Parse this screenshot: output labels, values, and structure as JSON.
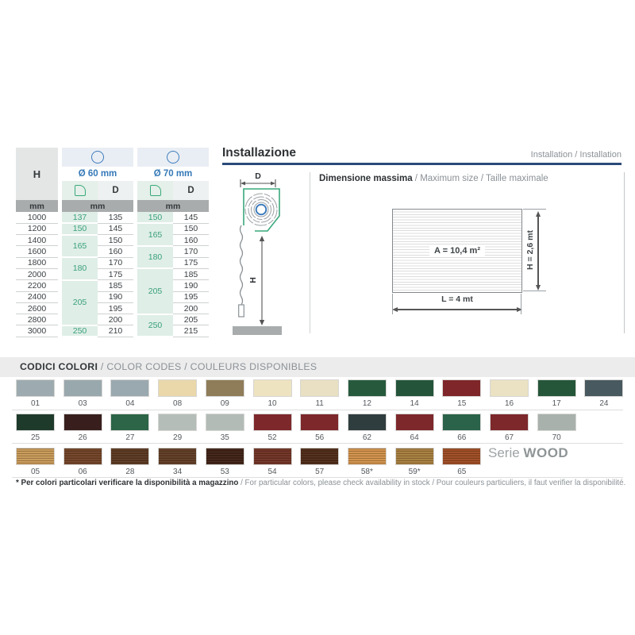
{
  "header": {
    "title": "Installazione",
    "subtitle": "Installation / Installation"
  },
  "roller_diagram": {
    "d_label": "D",
    "h_label": "H"
  },
  "max_size": {
    "label_bold": "Dimensione massima",
    "label_rest": " / Maximum size / Taille maximale",
    "area": "A = 10,4 m²",
    "length": "L = 4 mt",
    "height": "H = 2,6 mt"
  },
  "size_table": {
    "h_header": "H",
    "unit_label": "mm",
    "d_header": "D",
    "heights": [
      "1000",
      "1200",
      "1400",
      "1600",
      "1800",
      "2000",
      "2200",
      "2400",
      "2600",
      "2800",
      "3000"
    ],
    "groups": [
      {
        "diameter_label": "Ø 60 mm",
        "tube_cells": [
          {
            "value": "137",
            "span": 1
          },
          {
            "value": "150",
            "span": 1
          },
          {
            "value": "165",
            "span": 2
          },
          {
            "value": "180",
            "span": 2
          },
          {
            "value": "205",
            "span": 4
          },
          {
            "value": "250",
            "span": 1
          }
        ],
        "d_values": [
          "135",
          "145",
          "150",
          "160",
          "170",
          "175",
          "185",
          "190",
          "195",
          "200",
          "210"
        ]
      },
      {
        "diameter_label": "Ø 70 mm",
        "tube_cells": [
          {
            "value": "150",
            "span": 1
          },
          {
            "value": "165",
            "span": 2
          },
          {
            "value": "180",
            "span": 2
          },
          {
            "value": "205",
            "span": 4
          },
          {
            "value": "250",
            "span": 2
          }
        ],
        "d_values": [
          "145",
          "150",
          "160",
          "170",
          "175",
          "185",
          "190",
          "195",
          "200",
          "205",
          "215"
        ]
      }
    ]
  },
  "color_section": {
    "banner_bold": "CODICI COLORI",
    "banner_rest": " / COLOR CODES / COULEURS DISPONIBLES",
    "rows": [
      {
        "swatches": [
          {
            "code": "01",
            "hex": "#9dabb0"
          },
          {
            "code": "03",
            "hex": "#99a8ad"
          },
          {
            "code": "04",
            "hex": "#9aa9af"
          },
          {
            "code": "08",
            "hex": "#ead8ab"
          },
          {
            "code": "09",
            "hex": "#8f7c58"
          },
          {
            "code": "10",
            "hex": "#eee3c1"
          },
          {
            "code": "11",
            "hex": "#e9dfc2"
          },
          {
            "code": "12",
            "hex": "#275a3d"
          },
          {
            "code": "14",
            "hex": "#24543a"
          },
          {
            "code": "15",
            "hex": "#7e2629"
          },
          {
            "code": "16",
            "hex": "#ebe1c3"
          },
          {
            "code": "17",
            "hex": "#255639"
          },
          {
            "code": "24",
            "hex": "#48595f"
          }
        ]
      },
      {
        "swatches": [
          {
            "code": "25",
            "hex": "#1e3a2b"
          },
          {
            "code": "26",
            "hex": "#381f1e"
          },
          {
            "code": "27",
            "hex": "#2c6547"
          },
          {
            "code": "29",
            "hex": "#b5bdb9"
          },
          {
            "code": "35",
            "hex": "#b3bbb7"
          },
          {
            "code": "52",
            "hex": "#7d282b"
          },
          {
            "code": "56",
            "hex": "#7d282b"
          },
          {
            "code": "62",
            "hex": "#2f3d3e"
          },
          {
            "code": "64",
            "hex": "#7d282b"
          },
          {
            "code": "66",
            "hex": "#2a6349"
          },
          {
            "code": "67",
            "hex": "#7d282b"
          },
          {
            "code": "70",
            "hex": "#a9b1ad"
          }
        ]
      },
      {
        "swatches": [
          {
            "code": "05",
            "hex": "#c79a58",
            "wood": true
          },
          {
            "code": "06",
            "hex": "#6e4126",
            "wood": true
          },
          {
            "code": "28",
            "hex": "#573620",
            "wood": true
          },
          {
            "code": "34",
            "hex": "#5d3a24",
            "wood": true
          },
          {
            "code": "53",
            "hex": "#3a1e14",
            "wood": true
          },
          {
            "code": "54",
            "hex": "#6d3023",
            "wood": true
          },
          {
            "code": "57",
            "hex": "#4a2817",
            "wood": true
          },
          {
            "code": "58*",
            "hex": "#d0914a",
            "wood": true
          },
          {
            "code": "59*",
            "hex": "#a57e3d",
            "wood": true
          },
          {
            "code": "65",
            "hex": "#9c4a22",
            "wood": true
          }
        ]
      }
    ],
    "serie_prefix": "Serie ",
    "serie_bold": "WOOD",
    "footnote_bold": "* Per colori particolari verificare la disponibilità a magazzino",
    "footnote_rest": " / For particular colors, please check availability in stock / Pour couleurs particuliers, il faut verifier la disponibilité."
  }
}
